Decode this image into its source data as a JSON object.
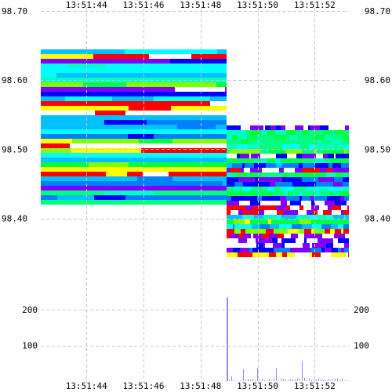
{
  "chart_data": {
    "type": "heatmap",
    "x_ticks": [
      "13:51:44",
      "13:51:46",
      "13:51:48",
      "13:51:50",
      "13:51:52"
    ],
    "x_tick_seconds": [
      44,
      46,
      48,
      50,
      52
    ],
    "x_range_seconds": [
      42.4,
      53.2
    ],
    "price": {
      "ylim": [
        98.37,
        98.7
      ],
      "tick_labels": [
        "98.70",
        "98.60",
        "98.50",
        "98.40"
      ],
      "tick_values": [
        98.7,
        98.6,
        98.5,
        98.4
      ]
    },
    "volume": {
      "ylim": [
        0,
        260
      ],
      "tick_labels": [
        "200",
        "100"
      ],
      "tick_values": [
        200,
        100
      ]
    },
    "colors": {
      "grid": "#c8c8c8",
      "volume_bar": "#8c8cff",
      "palette": [
        "#ff0000",
        "#ffff00",
        "#80ff00",
        "#00ff40",
        "#00ff80",
        "#00ffc0",
        "#00ffff",
        "#00c0ff",
        "#0080ff",
        "#0000ff",
        "#8000ff",
        "#ffffff"
      ]
    },
    "heatmap_segments": [
      {
        "t0": 42.4,
        "t1": 48.9,
        "p_top": 98.645,
        "p_bottom": 98.425
      },
      {
        "t0": 48.9,
        "t1": 53.2,
        "p_top": 98.535,
        "p_bottom": 98.345
      }
    ],
    "volume_spike": {
      "t": 48.9,
      "value": 235
    }
  }
}
